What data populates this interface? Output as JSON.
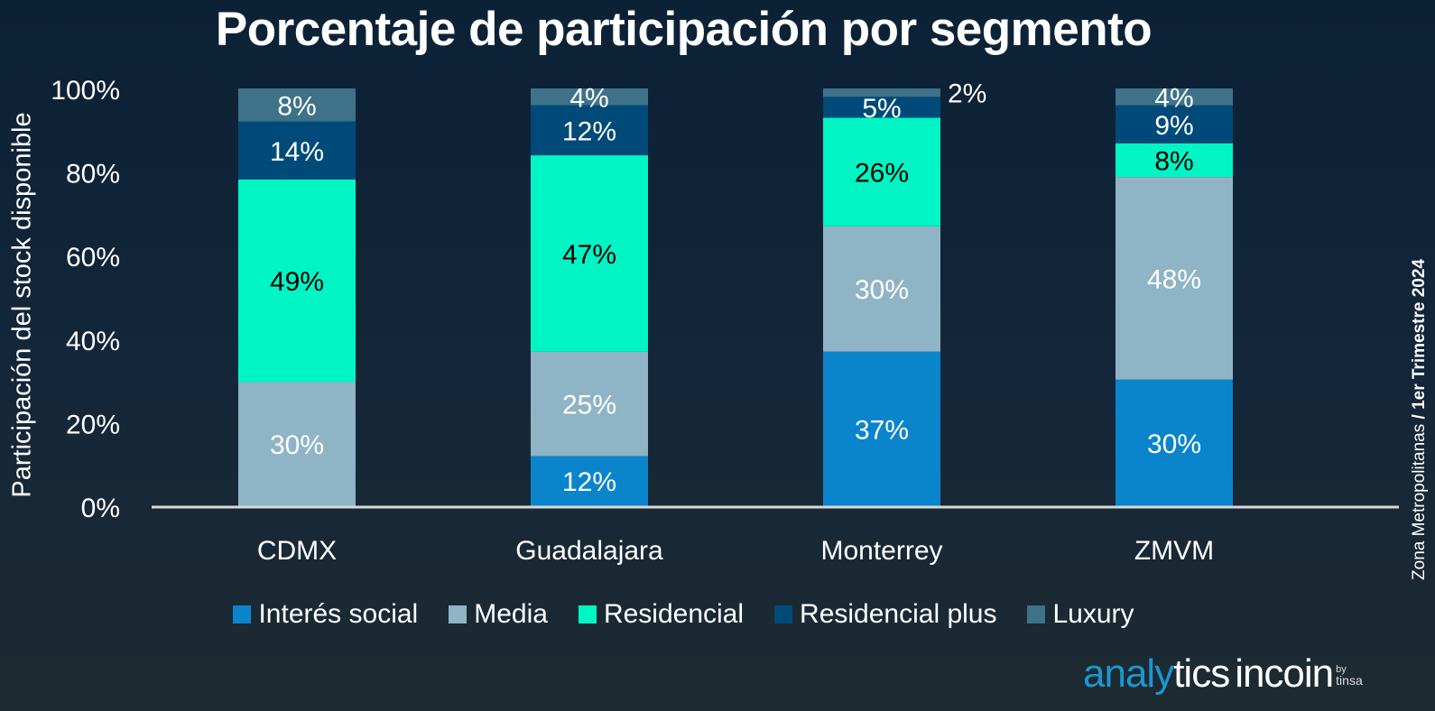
{
  "chart_data": {
    "type": "bar",
    "stacked": true,
    "title": "Porcentaje de participación por segmento",
    "xlabel": "",
    "ylabel": "Participación del stock disponible",
    "ylim": [
      0,
      100
    ],
    "yticks": [
      "0%",
      "20%",
      "40%",
      "60%",
      "80%",
      "100%"
    ],
    "categories": [
      "CDMX",
      "Guadalajara",
      "Monterrey",
      "ZMVM"
    ],
    "series": [
      {
        "name": "Interés social",
        "color": "#0a85cc",
        "label_color": "#ffffff",
        "values": [
          0,
          12,
          37,
          30
        ]
      },
      {
        "name": "Media",
        "color": "#8fb4c6",
        "label_color": "#ffffff",
        "values": [
          30,
          25,
          30,
          48
        ]
      },
      {
        "name": "Residencial",
        "color": "#00f5c4",
        "label_color": "#000000",
        "values": [
          49,
          47,
          26,
          8
        ]
      },
      {
        "name": "Residencial plus",
        "color": "#004a7a",
        "label_color": "#ffffff",
        "values": [
          14,
          12,
          5,
          9
        ]
      },
      {
        "name": "Luxury",
        "color": "#3d7289",
        "label_color": "#ffffff",
        "values": [
          8,
          4,
          2,
          4
        ]
      }
    ],
    "legend": "bottom",
    "grid": false
  },
  "side_note": {
    "region": "Zona Metropolitanas ",
    "period": "/ 1er Trimestre 2024"
  },
  "logo": {
    "part1": "analy",
    "part2": "tics",
    "part3": "incoin",
    "by": "by",
    "brand": "tinsa"
  }
}
